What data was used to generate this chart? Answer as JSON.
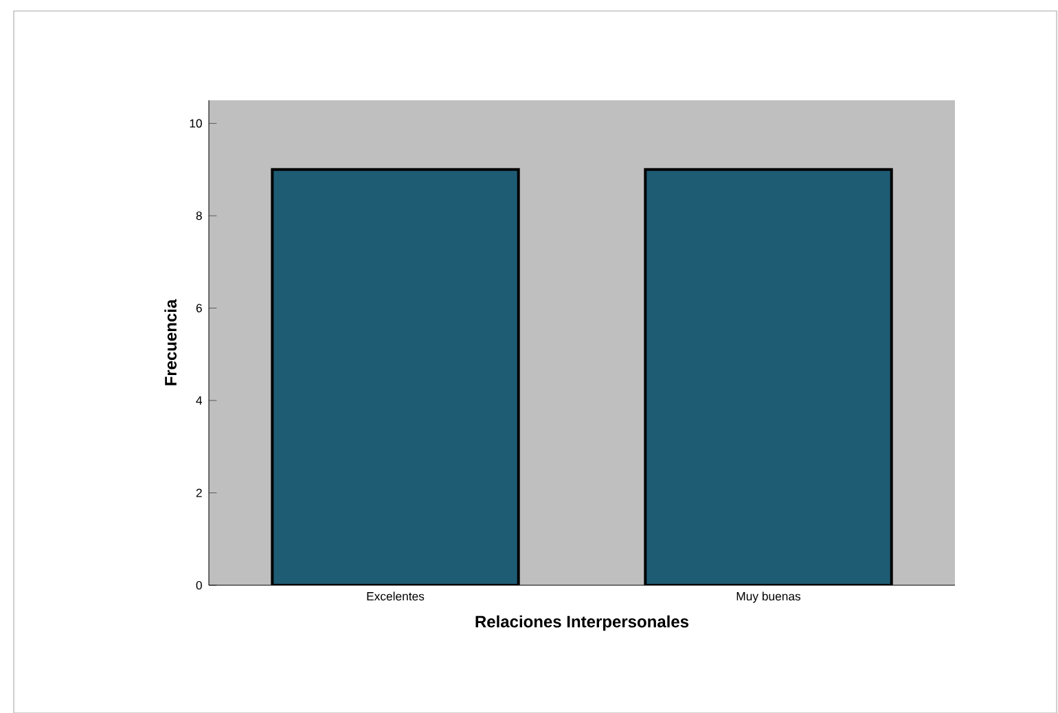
{
  "chart_data": {
    "type": "bar",
    "xlabel": "Relaciones Interpersonales",
    "ylabel": "Frecuencia",
    "categories": [
      "Excelentes",
      "Muy buenas"
    ],
    "values": [
      9,
      9
    ],
    "color": "#1e5c74",
    "ylim": [
      0,
      10.5
    ],
    "yticks": [
      0,
      2,
      4,
      6,
      8,
      10
    ]
  }
}
